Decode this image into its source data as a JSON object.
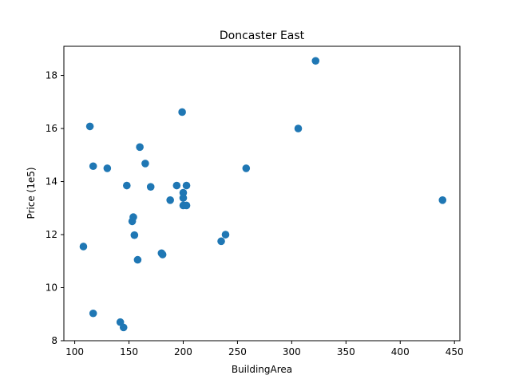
{
  "chart_data": {
    "type": "scatter",
    "title": "Doncaster East",
    "xlabel": "BuildingArea",
    "ylabel": "Price (1e5)",
    "xlim": [
      90,
      455
    ],
    "ylim": [
      8,
      19.1
    ],
    "xticks": [
      100,
      150,
      200,
      250,
      300,
      350,
      400,
      450
    ],
    "yticks": [
      8,
      10,
      12,
      14,
      16,
      18
    ],
    "grid": false,
    "marker_color": "#1f77b4",
    "points": [
      {
        "x": 108,
        "y": 11.55
      },
      {
        "x": 114,
        "y": 16.08
      },
      {
        "x": 117,
        "y": 14.58
      },
      {
        "x": 117,
        "y": 9.03
      },
      {
        "x": 130,
        "y": 14.5
      },
      {
        "x": 142,
        "y": 8.7
      },
      {
        "x": 145,
        "y": 8.5
      },
      {
        "x": 148,
        "y": 13.85
      },
      {
        "x": 153,
        "y": 12.5
      },
      {
        "x": 154,
        "y": 12.66
      },
      {
        "x": 155,
        "y": 11.98
      },
      {
        "x": 158,
        "y": 11.05
      },
      {
        "x": 160,
        "y": 15.3
      },
      {
        "x": 165,
        "y": 14.68
      },
      {
        "x": 170,
        "y": 13.8
      },
      {
        "x": 180,
        "y": 11.3
      },
      {
        "x": 181,
        "y": 11.25
      },
      {
        "x": 188,
        "y": 13.3
      },
      {
        "x": 194,
        "y": 13.85
      },
      {
        "x": 199,
        "y": 16.62
      },
      {
        "x": 200,
        "y": 13.58
      },
      {
        "x": 200,
        "y": 13.38
      },
      {
        "x": 200,
        "y": 13.1
      },
      {
        "x": 203,
        "y": 13.85
      },
      {
        "x": 203,
        "y": 13.1
      },
      {
        "x": 235,
        "y": 11.75
      },
      {
        "x": 239,
        "y": 12.0
      },
      {
        "x": 258,
        "y": 14.5
      },
      {
        "x": 306,
        "y": 16.0
      },
      {
        "x": 322,
        "y": 18.55
      },
      {
        "x": 439,
        "y": 13.3
      }
    ]
  }
}
